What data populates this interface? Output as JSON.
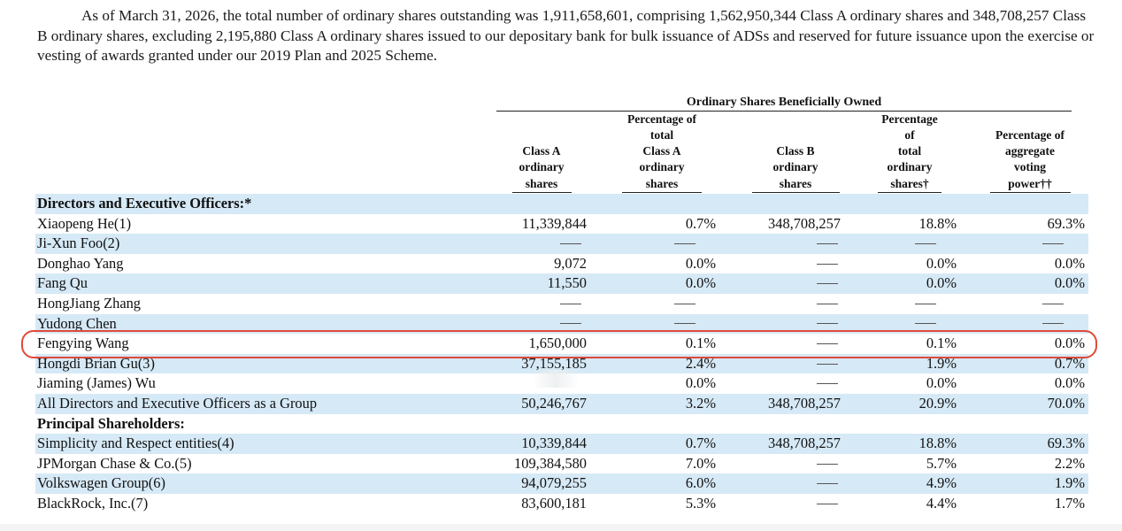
{
  "intro": {
    "text": "As of March 31, 2026, the total number of ordinary shares outstanding was 1,911,658,601, comprising 1,562,950,344 Class A ordinary shares and 348,708,257 Class B ordinary shares, excluding 2,195,880 Class A ordinary shares issued to our depositary bank for bulk issuance of ADSs and reserved for future issuance upon the exercise or vesting of awards granted under our 2019 Plan and 2025 Scheme."
  },
  "table": {
    "group_header": "Ordinary Shares Beneficially Owned",
    "columns": [
      {
        "lines": [
          "Class A",
          "ordinary",
          "shares"
        ]
      },
      {
        "lines": [
          "Percentage of",
          "total",
          "Class A",
          "ordinary",
          "shares"
        ]
      },
      {
        "lines": [
          "Class B",
          "ordinary",
          "shares"
        ]
      },
      {
        "lines": [
          "Percentage",
          "of",
          "total",
          "ordinary",
          "shares†"
        ]
      },
      {
        "lines": [
          "Percentage of",
          "aggregate",
          "voting",
          "power††"
        ]
      }
    ],
    "rows": [
      {
        "label": "Directors and Executive Officers:*",
        "section": true,
        "values": [
          "",
          "",
          "",
          "",
          ""
        ]
      },
      {
        "label": "Xiaopeng He(1)",
        "values": [
          "11,339,844",
          "0.7%",
          "348,708,257",
          "18.8%",
          "69.3%"
        ]
      },
      {
        "label": "Ji-Xun Foo(2)",
        "values": [
          "—",
          "—",
          "—",
          "—",
          "—"
        ]
      },
      {
        "label": "Donghao Yang",
        "values": [
          "9,072",
          "0.0%",
          "—",
          "0.0%",
          "0.0%"
        ]
      },
      {
        "label": "Fang Qu",
        "values": [
          "11,550",
          "0.0%",
          "—",
          "0.0%",
          "0.0%"
        ]
      },
      {
        "label": "HongJiang Zhang",
        "values": [
          "—",
          "—",
          "—",
          "—",
          "—"
        ]
      },
      {
        "label": "Yudong Chen",
        "values": [
          "—",
          "—",
          "—",
          "—",
          "—"
        ]
      },
      {
        "label": "Fengying Wang",
        "values": [
          "1,650,000",
          "0.1%",
          "—",
          "0.1%",
          "0.0%"
        ]
      },
      {
        "label": "Hongdi Brian Gu(3)",
        "values": [
          "37,155,185",
          "2.4%",
          "—",
          "1.9%",
          "0.7%"
        ]
      },
      {
        "label": "Jiaming (James) Wu",
        "values": [
          "",
          "0.0%",
          "—",
          "0.0%",
          "0.0%"
        ]
      },
      {
        "label": "All Directors and Executive Officers as a Group",
        "values": [
          "50,246,767",
          "3.2%",
          "348,708,257",
          "20.9%",
          "70.0%"
        ]
      },
      {
        "label": "Principal Shareholders:",
        "section": true,
        "values": [
          "",
          "",
          "",
          "",
          ""
        ]
      },
      {
        "label": "Simplicity and Respect entities(4)",
        "values": [
          "10,339,844",
          "0.7%",
          "348,708,257",
          "18.8%",
          "69.3%"
        ]
      },
      {
        "label": "JPMorgan Chase & Co.(5)",
        "values": [
          "109,384,580",
          "7.0%",
          "—",
          "5.7%",
          "2.2%"
        ]
      },
      {
        "label": "Volkswagen Group(6)",
        "values": [
          "94,079,255",
          "6.0%",
          "—",
          "4.9%",
          "1.9%"
        ]
      },
      {
        "label": "BlackRock, Inc.(7)",
        "values": [
          "83,600,181",
          "5.3%",
          "—",
          "4.4%",
          "1.7%"
        ]
      }
    ]
  },
  "highlight": {
    "color": "#e04a3a"
  },
  "colors": {
    "shade": "#d6e9f6"
  }
}
